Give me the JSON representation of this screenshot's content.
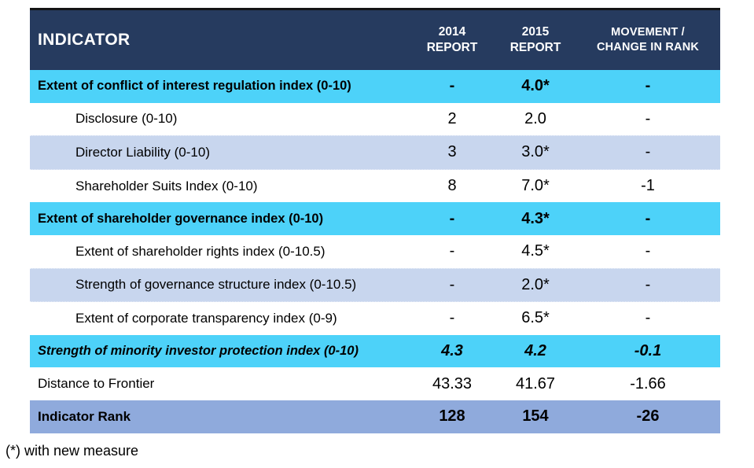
{
  "header": {
    "indicator": "INDICATOR",
    "col_2014": {
      "line1": "2014",
      "line2": "REPORT"
    },
    "col_2015": {
      "line1": "2015",
      "line2": "REPORT"
    },
    "col_movement": {
      "line1": "MOVEMENT /",
      "line2": "CHANGE IN RANK"
    }
  },
  "rows": [
    {
      "label": "Extent of conflict of interest regulation index (0-10)",
      "v2014": "-",
      "v2015": "4.0*",
      "movement": "-"
    },
    {
      "label": "Disclosure (0-10)",
      "v2014": "2",
      "v2015": "2.0",
      "movement": "-"
    },
    {
      "label": "Director Liability (0-10)",
      "v2014": "3",
      "v2015": "3.0*",
      "movement": "-"
    },
    {
      "label": "Shareholder Suits Index (0-10)",
      "v2014": "8",
      "v2015": "7.0*",
      "movement": "-1"
    },
    {
      "label": "Extent of shareholder governance index (0-10)",
      "v2014": "-",
      "v2015": "4.3*",
      "movement": "-"
    },
    {
      "label": "Extent of shareholder rights index (0-10.5)",
      "v2014": "-",
      "v2015": "4.5*",
      "movement": "-"
    },
    {
      "label": "Strength of governance structure index (0-10.5)",
      "v2014": "-",
      "v2015": "2.0*",
      "movement": "-"
    },
    {
      "label": "Extent of corporate transparency index (0-9)",
      "v2014": "-",
      "v2015": "6.5*",
      "movement": "-"
    },
    {
      "label": "Strength of minority investor protection index (0-10)",
      "v2014": "4.3",
      "v2015": "4.2",
      "movement": "-0.1"
    },
    {
      "label": "Distance to Frontier",
      "v2014": "43.33",
      "v2015": "41.67",
      "movement": "-1.66"
    },
    {
      "label": "Indicator Rank",
      "v2014": "128",
      "v2015": "154",
      "movement": "-26"
    }
  ],
  "footnote": "(*) with new measure",
  "colors": {
    "header_bg": "#263B5F",
    "section_row_bg": "#4DD2F9",
    "alt_row_bg": "#C8D6EE",
    "rank_row_bg": "#8FAADC",
    "header_text": "#FFFFFF",
    "body_text": "#000000",
    "top_border": "#141414"
  }
}
